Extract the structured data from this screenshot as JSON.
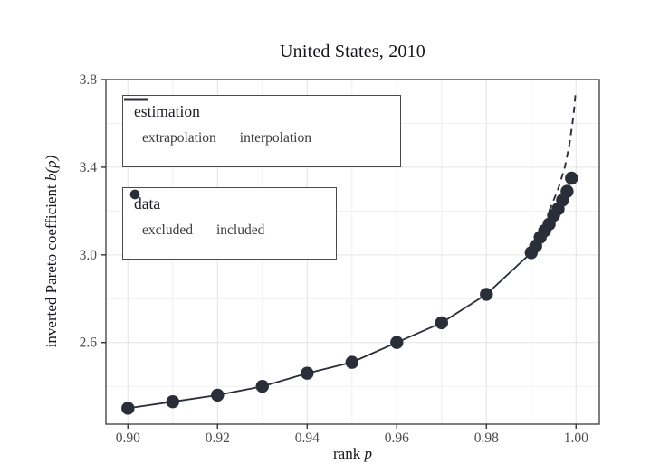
{
  "figure": {
    "title": "United States, 2010",
    "x_label_text": "rank ",
    "x_label_math": "p",
    "y_label_text": "inverted Pareto coefficient ",
    "y_label_math": "b(p)"
  },
  "legend_estimation": {
    "title": "estimation",
    "items": [
      {
        "label": "extrapolation",
        "glyph": "dashed-line"
      },
      {
        "label": "interpolation",
        "glyph": "solid-line"
      }
    ]
  },
  "legend_data": {
    "title": "data",
    "items": [
      {
        "label": "excluded",
        "glyph": "open-circle"
      },
      {
        "label": "included",
        "glyph": "filled-circle"
      }
    ]
  },
  "colors": {
    "series": "#2a2e38",
    "panel_border": "#474747",
    "grid_major": "#e4e4e4",
    "grid_minor": "#f0f0f0",
    "tick_mark": "#333333",
    "tick_label": "#4d4d4d",
    "text": "#15151c"
  },
  "chart_data": {
    "type": "scatter",
    "title": "United States, 2010",
    "xlabel": "rank p",
    "ylabel": "inverted Pareto coefficient b(p)",
    "xlim": [
      0.8951,
      1.0052
    ],
    "ylim": [
      2.2275,
      3.8
    ],
    "grid": true,
    "legend_position": "inside-top-left",
    "x_ticks": {
      "values": [
        0.9,
        0.92,
        0.94,
        0.96,
        0.98,
        1.0
      ],
      "labels": [
        "0.90",
        "0.92",
        "0.94",
        "0.96",
        "0.98",
        "1.00"
      ]
    },
    "x_minor_ticks": [
      0.91,
      0.93,
      0.95,
      0.97,
      0.99
    ],
    "y_ticks": {
      "values": [
        2.6,
        3.0,
        3.4,
        3.8
      ],
      "labels": [
        "2.6",
        "3.0",
        "3.4",
        "3.8"
      ]
    },
    "y_minor_ticks": [
      2.4,
      2.8,
      3.2,
      3.6
    ],
    "series": [
      {
        "name": "interpolation",
        "style": "solid-line",
        "points": [
          [
            0.9,
            2.3
          ],
          [
            0.91,
            2.33
          ],
          [
            0.92,
            2.36
          ],
          [
            0.93,
            2.4
          ],
          [
            0.94,
            2.46
          ],
          [
            0.95,
            2.51
          ],
          [
            0.96,
            2.6
          ],
          [
            0.97,
            2.69
          ],
          [
            0.98,
            2.82
          ],
          [
            0.99,
            3.01
          ],
          [
            0.991,
            3.04
          ],
          [
            0.992,
            3.08
          ],
          [
            0.993,
            3.11
          ],
          [
            0.994,
            3.14
          ],
          [
            0.995,
            3.18
          ],
          [
            0.996,
            3.21
          ],
          [
            0.997,
            3.25
          ],
          [
            0.998,
            3.29
          ],
          [
            0.999,
            3.35
          ]
        ]
      },
      {
        "name": "extrapolation",
        "style": "dashed-line",
        "points": [
          [
            0.994,
            3.2
          ],
          [
            0.996,
            3.3
          ],
          [
            0.9975,
            3.4
          ],
          [
            0.9985,
            3.5
          ],
          [
            0.9992,
            3.6
          ],
          [
            0.9996,
            3.67
          ],
          [
            0.9999,
            3.74
          ]
        ]
      },
      {
        "name": "included",
        "style": "filled-points",
        "points": [
          [
            0.9,
            2.3
          ],
          [
            0.91,
            2.33
          ],
          [
            0.92,
            2.36
          ],
          [
            0.93,
            2.4
          ],
          [
            0.94,
            2.46
          ],
          [
            0.95,
            2.51
          ],
          [
            0.96,
            2.6
          ],
          [
            0.97,
            2.69
          ],
          [
            0.98,
            2.82
          ],
          [
            0.99,
            3.01
          ],
          [
            0.991,
            3.04
          ],
          [
            0.992,
            3.08
          ],
          [
            0.993,
            3.11
          ],
          [
            0.994,
            3.14
          ],
          [
            0.995,
            3.18
          ],
          [
            0.996,
            3.21
          ],
          [
            0.997,
            3.25
          ],
          [
            0.998,
            3.29
          ],
          [
            0.999,
            3.35
          ]
        ]
      },
      {
        "name": "excluded",
        "style": "open-points",
        "points": []
      }
    ]
  }
}
